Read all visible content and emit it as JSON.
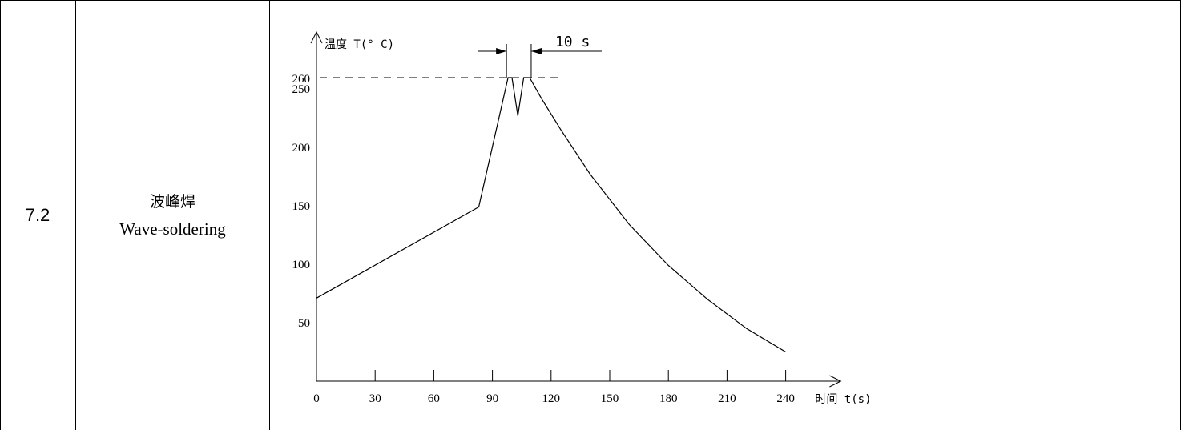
{
  "row": {
    "number": "7.2",
    "name_cn": "波峰焊",
    "name_en": "Wave-soldering"
  },
  "chart_data": {
    "type": "line",
    "ylabel": "温度 T(° C)",
    "xlabel": "时间 t(s)",
    "x_ticks": [
      0,
      30,
      60,
      90,
      120,
      150,
      180,
      210,
      240
    ],
    "y_ticks": [
      50,
      100,
      150,
      200,
      250,
      260
    ],
    "xlim": [
      0,
      260
    ],
    "ylim": [
      0,
      280
    ],
    "reference_line": {
      "y": 260,
      "style": "dashed"
    },
    "annotation": "10 s",
    "series": [
      {
        "x": [
          0,
          83,
          98,
          100,
          103,
          106,
          109,
          115,
          125,
          140,
          160,
          180,
          200,
          220,
          240
        ],
        "y": [
          71,
          149,
          258,
          258,
          227,
          258,
          258,
          242,
          215,
          177,
          134,
          99,
          70,
          45,
          25
        ]
      }
    ]
  }
}
